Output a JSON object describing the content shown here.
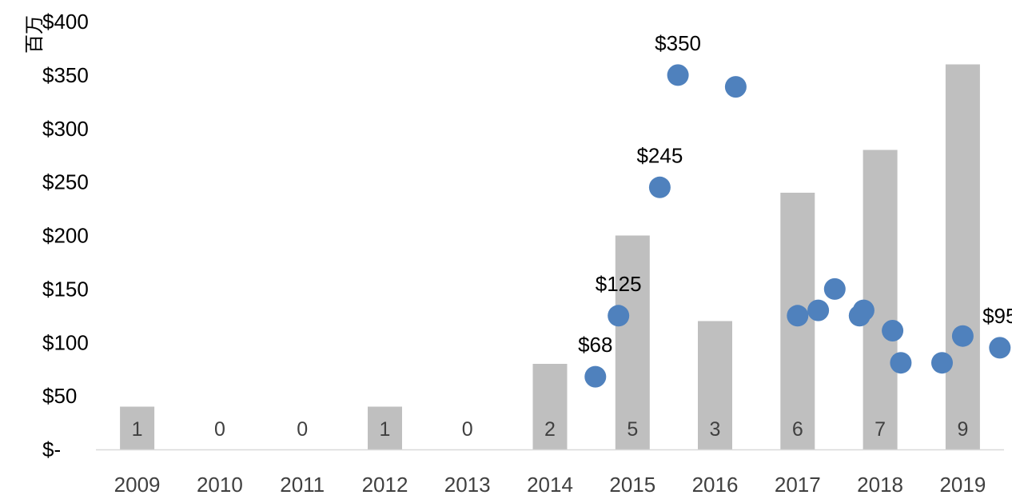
{
  "chart_data": {
    "type": "bar+scatter",
    "title": "",
    "xlabel": "",
    "ylabel": "",
    "y_unit_label": "百万",
    "ylim": [
      0,
      400
    ],
    "y_ticks": [
      {
        "value": 0,
        "label": "$-"
      },
      {
        "value": 50,
        "label": "$50"
      },
      {
        "value": 100,
        "label": "$100"
      },
      {
        "value": 150,
        "label": "$150"
      },
      {
        "value": 200,
        "label": "$200"
      },
      {
        "value": 250,
        "label": "$250"
      },
      {
        "value": 300,
        "label": "$300"
      },
      {
        "value": 350,
        "label": "$350"
      },
      {
        "value": 400,
        "label": "$400"
      }
    ],
    "grid": false,
    "legend": "none",
    "colors": {
      "bar": "#bfbfbf",
      "point": "#4f81bd",
      "axis": "#d9d9d9"
    },
    "categories": [
      "2009",
      "2010",
      "2011",
      "2012",
      "2013",
      "2014",
      "2015",
      "2016",
      "2017",
      "2018",
      "2019"
    ],
    "bars": {
      "values": [
        40,
        0,
        0,
        40,
        0,
        80,
        200,
        120,
        240,
        280,
        360
      ],
      "data_labels": [
        "1",
        "0",
        "0",
        "1",
        "0",
        "2",
        "5",
        "3",
        "6",
        "7",
        "9"
      ]
    },
    "points": [
      {
        "x": 2014.55,
        "y": 68,
        "label": "$68"
      },
      {
        "x": 2014.83,
        "y": 125,
        "label": "$125"
      },
      {
        "x": 2015.33,
        "y": 245,
        "label": "$245"
      },
      {
        "x": 2015.55,
        "y": 350,
        "label": "$350"
      },
      {
        "x": 2016.25,
        "y": 339
      },
      {
        "x": 2017.0,
        "y": 125
      },
      {
        "x": 2017.25,
        "y": 130
      },
      {
        "x": 2017.45,
        "y": 150
      },
      {
        "x": 2017.75,
        "y": 125
      },
      {
        "x": 2017.8,
        "y": 130
      },
      {
        "x": 2018.15,
        "y": 111
      },
      {
        "x": 2018.25,
        "y": 81
      },
      {
        "x": 2018.75,
        "y": 81
      },
      {
        "x": 2019.0,
        "y": 106
      },
      {
        "x": 2019.45,
        "y": 95,
        "label": "$95"
      }
    ]
  }
}
